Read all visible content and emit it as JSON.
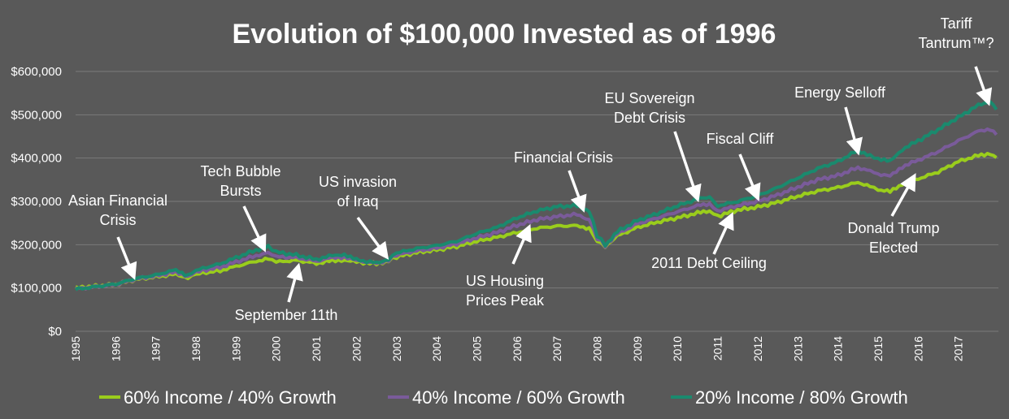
{
  "chart_data": {
    "type": "line",
    "title": "Evolution of $100,000 Invested as of 1996",
    "xlabel": "",
    "ylabel": "",
    "ylim": [
      0,
      650000
    ],
    "xlim": [
      1995,
      2018
    ],
    "y_ticks": [
      "$0",
      "$100,000",
      "$200,000",
      "$300,000",
      "$400,000",
      "$500,000",
      "$600,000"
    ],
    "x_ticks": [
      "1995",
      "1996",
      "1997",
      "1998",
      "1999",
      "2000",
      "2001",
      "2002",
      "2003",
      "2004",
      "2005",
      "2006",
      "2007",
      "2008",
      "2009",
      "2010",
      "2011",
      "2012",
      "2013",
      "2014",
      "2015",
      "2016",
      "2017"
    ],
    "grid": "horizontal",
    "legend_position": "bottom",
    "series": [
      {
        "name": "60% Income / 40% Growth",
        "color": "#9acd1c",
        "points": [
          [
            1995,
            100000
          ],
          [
            1996,
            108000
          ],
          [
            1996.5,
            120000
          ],
          [
            1997,
            126000
          ],
          [
            1997.5,
            132000
          ],
          [
            1997.8,
            124000
          ],
          [
            1998,
            132000
          ],
          [
            1998.6,
            140000
          ],
          [
            1999,
            150000
          ],
          [
            1999.5,
            162000
          ],
          [
            1999.8,
            168000
          ],
          [
            2000,
            160000
          ],
          [
            2000.5,
            164000
          ],
          [
            2001,
            157000
          ],
          [
            2001.4,
            163000
          ],
          [
            2001.7,
            165000
          ],
          [
            2002,
            160000
          ],
          [
            2002.5,
            156000
          ],
          [
            2002.8,
            163000
          ],
          [
            2003,
            172000
          ],
          [
            2003.5,
            182000
          ],
          [
            2004,
            188000
          ],
          [
            2004.5,
            196000
          ],
          [
            2005,
            208000
          ],
          [
            2005.5,
            217000
          ],
          [
            2006,
            228000
          ],
          [
            2006.5,
            238000
          ],
          [
            2007,
            243000
          ],
          [
            2007.5,
            244000
          ],
          [
            2007.8,
            238000
          ],
          [
            2008,
            208000
          ],
          [
            2008.2,
            197000
          ],
          [
            2008.5,
            220000
          ],
          [
            2009,
            240000
          ],
          [
            2009.5,
            252000
          ],
          [
            2010,
            262000
          ],
          [
            2010.5,
            273000
          ],
          [
            2010.8,
            278000
          ],
          [
            2011,
            266000
          ],
          [
            2011.5,
            280000
          ],
          [
            2012,
            287000
          ],
          [
            2012.5,
            298000
          ],
          [
            2013,
            312000
          ],
          [
            2013.5,
            324000
          ],
          [
            2014,
            332000
          ],
          [
            2014.5,
            344000
          ],
          [
            2014.8,
            336000
          ],
          [
            2015,
            326000
          ],
          [
            2015.3,
            322000
          ],
          [
            2015.6,
            340000
          ],
          [
            2016,
            352000
          ],
          [
            2016.5,
            368000
          ],
          [
            2017,
            392000
          ],
          [
            2017.5,
            406000
          ],
          [
            2017.8,
            411000
          ],
          [
            2017.95,
            401000
          ]
        ]
      },
      {
        "name": "40% Income / 60% Growth",
        "color": "#7a5b9a",
        "points": [
          [
            1995,
            98000
          ],
          [
            1996,
            108000
          ],
          [
            1996.5,
            121000
          ],
          [
            1997,
            128000
          ],
          [
            1997.5,
            137000
          ],
          [
            1997.8,
            127000
          ],
          [
            1998,
            137000
          ],
          [
            1998.6,
            148000
          ],
          [
            1999,
            160000
          ],
          [
            1999.5,
            175000
          ],
          [
            1999.8,
            182000
          ],
          [
            2000,
            172000
          ],
          [
            2000.5,
            170000
          ],
          [
            2001,
            162000
          ],
          [
            2001.4,
            170000
          ],
          [
            2001.7,
            172000
          ],
          [
            2002,
            163000
          ],
          [
            2002.5,
            157000
          ],
          [
            2002.8,
            165000
          ],
          [
            2003,
            176000
          ],
          [
            2003.5,
            186000
          ],
          [
            2004,
            192000
          ],
          [
            2004.5,
            202000
          ],
          [
            2005,
            216000
          ],
          [
            2005.5,
            228000
          ],
          [
            2006,
            245000
          ],
          [
            2006.5,
            258000
          ],
          [
            2007,
            265000
          ],
          [
            2007.5,
            270000
          ],
          [
            2007.8,
            258000
          ],
          [
            2008,
            215000
          ],
          [
            2008.2,
            198000
          ],
          [
            2008.5,
            225000
          ],
          [
            2009,
            248000
          ],
          [
            2009.5,
            262000
          ],
          [
            2010,
            276000
          ],
          [
            2010.5,
            290000
          ],
          [
            2010.8,
            294000
          ],
          [
            2011,
            278000
          ],
          [
            2011.5,
            290000
          ],
          [
            2012,
            300000
          ],
          [
            2012.5,
            315000
          ],
          [
            2013,
            333000
          ],
          [
            2013.5,
            350000
          ],
          [
            2014,
            360000
          ],
          [
            2014.5,
            378000
          ],
          [
            2014.8,
            372000
          ],
          [
            2015,
            362000
          ],
          [
            2015.3,
            358000
          ],
          [
            2015.6,
            380000
          ],
          [
            2016,
            395000
          ],
          [
            2016.5,
            415000
          ],
          [
            2017,
            440000
          ],
          [
            2017.5,
            462000
          ],
          [
            2017.8,
            468000
          ],
          [
            2017.95,
            454000
          ]
        ]
      },
      {
        "name": "20% Income / 80% Growth",
        "color": "#1a8a6e",
        "points": [
          [
            1995,
            97000
          ],
          [
            1996,
            109000
          ],
          [
            1996.5,
            122000
          ],
          [
            1997,
            130000
          ],
          [
            1997.5,
            142000
          ],
          [
            1997.8,
            129000
          ],
          [
            1998,
            141000
          ],
          [
            1998.6,
            156000
          ],
          [
            1999,
            170000
          ],
          [
            1999.5,
            188000
          ],
          [
            1999.8,
            196000
          ],
          [
            2000,
            183000
          ],
          [
            2000.5,
            176000
          ],
          [
            2001,
            166000
          ],
          [
            2001.4,
            175000
          ],
          [
            2001.7,
            178000
          ],
          [
            2002,
            165000
          ],
          [
            2002.5,
            158000
          ],
          [
            2002.8,
            167000
          ],
          [
            2003,
            181000
          ],
          [
            2003.5,
            191000
          ],
          [
            2004,
            198000
          ],
          [
            2004.5,
            208000
          ],
          [
            2005,
            226000
          ],
          [
            2005.5,
            240000
          ],
          [
            2006,
            262000
          ],
          [
            2006.5,
            278000
          ],
          [
            2007,
            288000
          ],
          [
            2007.5,
            290000
          ],
          [
            2007.8,
            278000
          ],
          [
            2008,
            222000
          ],
          [
            2008.2,
            199000
          ],
          [
            2008.5,
            230000
          ],
          [
            2009,
            256000
          ],
          [
            2009.5,
            272000
          ],
          [
            2010,
            290000
          ],
          [
            2010.5,
            305000
          ],
          [
            2010.8,
            310000
          ],
          [
            2011,
            290000
          ],
          [
            2011.5,
            300000
          ],
          [
            2012,
            313000
          ],
          [
            2012.5,
            332000
          ],
          [
            2013,
            354000
          ],
          [
            2013.5,
            376000
          ],
          [
            2014,
            392000
          ],
          [
            2014.5,
            418000
          ],
          [
            2014.8,
            406000
          ],
          [
            2015,
            398000
          ],
          [
            2015.3,
            392000
          ],
          [
            2015.6,
            420000
          ],
          [
            2016,
            440000
          ],
          [
            2016.5,
            466000
          ],
          [
            2017,
            494000
          ],
          [
            2017.5,
            522000
          ],
          [
            2017.8,
            532000
          ],
          [
            2017.95,
            512000
          ]
        ]
      }
    ],
    "annotations": [
      {
        "lines": [
          "Asian Financial",
          "Crisis"
        ],
        "point": [
          1996.45,
          126000
        ]
      },
      {
        "lines": [
          "Tech Bubble",
          "Bursts"
        ],
        "point": [
          1999.7,
          190000
        ]
      },
      {
        "lines": [
          "September 11th"
        ],
        "point": [
          2000.55,
          150000
        ]
      },
      {
        "lines": [
          "US invasion",
          "of Iraq"
        ],
        "point": [
          2002.75,
          172000
        ]
      },
      {
        "lines": [
          "US Housing",
          "Prices Peak"
        ],
        "point": [
          2006.3,
          240000
        ]
      },
      {
        "lines": [
          "Financial Crisis"
        ],
        "point": [
          2007.65,
          282000
        ]
      },
      {
        "lines": [
          "EU Sovereign",
          "Debt Crisis"
        ],
        "point": [
          2010.5,
          306000
        ]
      },
      {
        "lines": [
          "2011 Debt Ceiling"
        ],
        "point": [
          2011.35,
          268000
        ]
      },
      {
        "lines": [
          "Fiscal Cliff"
        ],
        "point": [
          2012.0,
          308000
        ]
      },
      {
        "lines": [
          "Energy Selloff"
        ],
        "point": [
          2014.5,
          414000
        ]
      },
      {
        "lines": [
          "Donald Trump",
          "Elected"
        ],
        "point": [
          2015.9,
          358000
        ]
      },
      {
        "lines": [
          "Tariff",
          "Tantrum™?"
        ],
        "point": [
          2017.75,
          528000
        ]
      }
    ]
  }
}
